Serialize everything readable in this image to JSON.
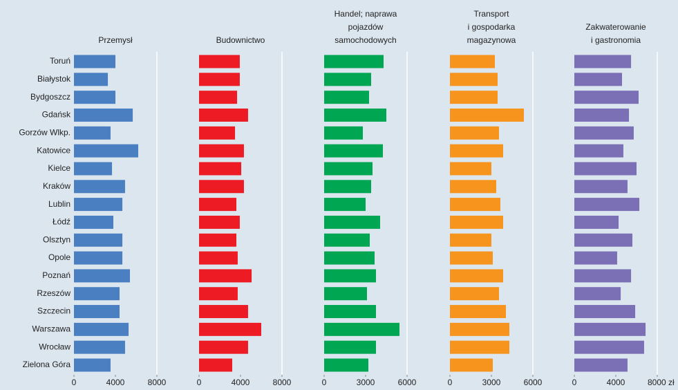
{
  "chart_data": [
    {
      "type": "barh",
      "title": [
        "Przemysł"
      ],
      "color": "#4a7fc1",
      "categories": [
        "Toruń",
        "Białystok",
        "Bydgoszcz",
        "Gdańsk",
        "Gorzów Wlkp.",
        "Katowice",
        "Kielce",
        "Kraków",
        "Lublin",
        "Łódź",
        "Olsztyn",
        "Opole",
        "Poznań",
        "Rzeszów",
        "Szczecin",
        "Warszawa",
        "Wrocław",
        "Zielona Góra"
      ],
      "values": [
        4000,
        3270,
        4000,
        5670,
        3530,
        6200,
        3670,
        4930,
        4670,
        3800,
        4670,
        4670,
        5400,
        4400,
        4400,
        5270,
        4930,
        3530
      ],
      "xlim": [
        0,
        8000
      ],
      "xticks": [
        0,
        4000,
        8000
      ]
    },
    {
      "type": "barh",
      "title": [
        "Budownictwo"
      ],
      "color": "#ed1c24",
      "values": [
        3930,
        3930,
        3670,
        4730,
        3470,
        4330,
        4070,
        4330,
        3600,
        3930,
        3600,
        3730,
        5070,
        3730,
        4730,
        6000,
        4730,
        3200
      ],
      "xlim": [
        0,
        8000
      ],
      "xticks": [
        0,
        4000,
        8000
      ]
    },
    {
      "type": "barh",
      "title": [
        "Handel; naprawa",
        "pojazdów",
        "samochodowych"
      ],
      "color": "#00a651",
      "values": [
        4300,
        3400,
        3250,
        4500,
        2800,
        4250,
        3500,
        3400,
        3000,
        4050,
        3300,
        3650,
        3750,
        3100,
        3750,
        5450,
        3750,
        3200
      ],
      "xlim": [
        0,
        6000
      ],
      "xticks": [
        0,
        3000,
        6000
      ]
    },
    {
      "type": "barh",
      "title": [
        "Transport",
        "i gospodarka",
        "magazynowa"
      ],
      "color": "#f7941d",
      "values": [
        3250,
        3450,
        3450,
        5350,
        3550,
        3850,
        3000,
        3350,
        3650,
        3850,
        3000,
        3100,
        3850,
        3550,
        4050,
        4300,
        4300,
        3100
      ],
      "xlim": [
        0,
        6000
      ],
      "xticks": [
        0,
        3000,
        6000
      ]
    },
    {
      "type": "barh",
      "title": [
        "Zakwaterowanie",
        "i gastronomia"
      ],
      "color": "#7b6fb5",
      "values": [
        5470,
        4600,
        6200,
        5270,
        5730,
        4730,
        6000,
        5130,
        6270,
        4270,
        5600,
        4130,
        5470,
        4470,
        5870,
        6870,
        6730,
        5130
      ],
      "xlim": [
        0,
        8000
      ],
      "xticks": [
        0,
        4000,
        {
          "value": 8000,
          "label": "8000 zł"
        }
      ]
    }
  ]
}
